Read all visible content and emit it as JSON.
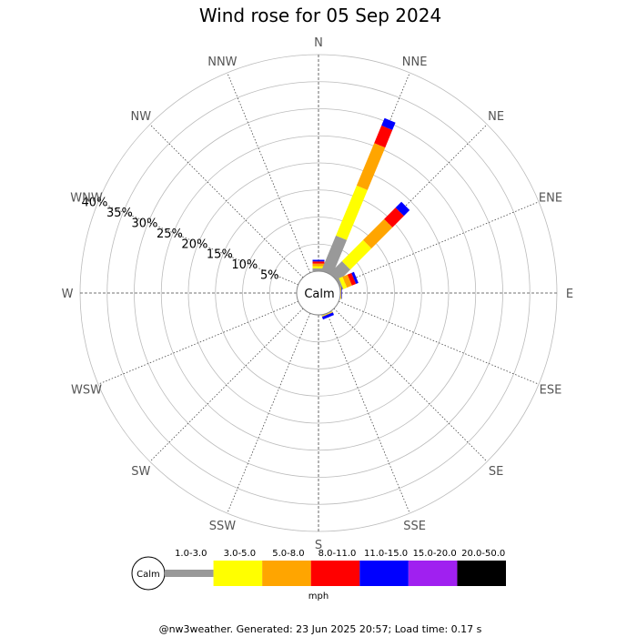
{
  "chart_data": {
    "type": "wind-rose",
    "title": "Wind rose for 05 Sep 2024",
    "directions": [
      "N",
      "NNE",
      "NE",
      "ENE",
      "E",
      "ESE",
      "SE",
      "SSE",
      "S",
      "SSW",
      "SW",
      "WSW",
      "W",
      "WNW",
      "NW",
      "NNW"
    ],
    "radial_ticks": [
      5,
      10,
      15,
      20,
      25,
      30,
      35,
      40
    ],
    "radial_tick_labels": [
      "5%",
      "10%",
      "15%",
      "20%",
      "25%",
      "30%",
      "35%",
      "40%"
    ],
    "radial_max": 40,
    "calm_label": "Calm",
    "speed_bins": [
      {
        "label": "1.0-3.0",
        "color": "#999999"
      },
      {
        "label": "3.0-5.0",
        "color": "#ffff00"
      },
      {
        "label": "5.0-8.0",
        "color": "#ffa500"
      },
      {
        "label": "8.0-11.0",
        "color": "#ff0000"
      },
      {
        "label": "11.0-15.0",
        "color": "#0000ff"
      },
      {
        "label": "15.0-20.0",
        "color": "#a020f0"
      },
      {
        "label": "20.0-50.0",
        "color": "#000000"
      }
    ],
    "series": [
      {
        "direction": "N",
        "values": [
          0.5,
          0.4,
          0.5,
          0.4,
          0.3,
          0,
          0
        ]
      },
      {
        "direction": "NNE",
        "values": [
          7.0,
          10.0,
          8.5,
          3.5,
          1.5,
          0,
          0
        ]
      },
      {
        "direction": "NE",
        "values": [
          3.2,
          5.5,
          5.5,
          3.0,
          1.5,
          0,
          0
        ]
      },
      {
        "direction": "ENE",
        "values": [
          0.5,
          0.7,
          1.0,
          0.8,
          0.5,
          0,
          0
        ]
      },
      {
        "direction": "E",
        "values": [
          0,
          0.1,
          0.1,
          0,
          0.1,
          0,
          0
        ]
      },
      {
        "direction": "ESE",
        "values": [
          0,
          0,
          0,
          0,
          0,
          0,
          0
        ]
      },
      {
        "direction": "SE",
        "values": [
          0,
          0,
          0,
          0,
          0,
          0,
          0
        ]
      },
      {
        "direction": "SSE",
        "values": [
          0.1,
          0.1,
          0.1,
          0,
          0.5,
          0,
          0
        ]
      },
      {
        "direction": "S",
        "values": [
          0,
          0,
          0,
          0,
          0,
          0,
          0
        ]
      },
      {
        "direction": "SSW",
        "values": [
          0,
          0,
          0,
          0,
          0,
          0,
          0
        ]
      },
      {
        "direction": "SW",
        "values": [
          0,
          0,
          0,
          0,
          0,
          0,
          0
        ]
      },
      {
        "direction": "WSW",
        "values": [
          0,
          0,
          0,
          0,
          0,
          0,
          0
        ]
      },
      {
        "direction": "W",
        "values": [
          0,
          0,
          0,
          0,
          0,
          0,
          0
        ]
      },
      {
        "direction": "WNW",
        "values": [
          0,
          0,
          0,
          0,
          0,
          0,
          0
        ]
      },
      {
        "direction": "NW",
        "values": [
          0,
          0,
          0,
          0,
          0,
          0,
          0
        ]
      },
      {
        "direction": "NNW",
        "values": [
          0,
          0,
          0,
          0,
          0,
          0,
          0
        ]
      }
    ],
    "legend": {
      "unit": "mph",
      "calm_label": "Calm"
    },
    "footer": "@nw3weather. Generated: 23 Jun 2025 20:57; Load time: 0.17 s"
  }
}
